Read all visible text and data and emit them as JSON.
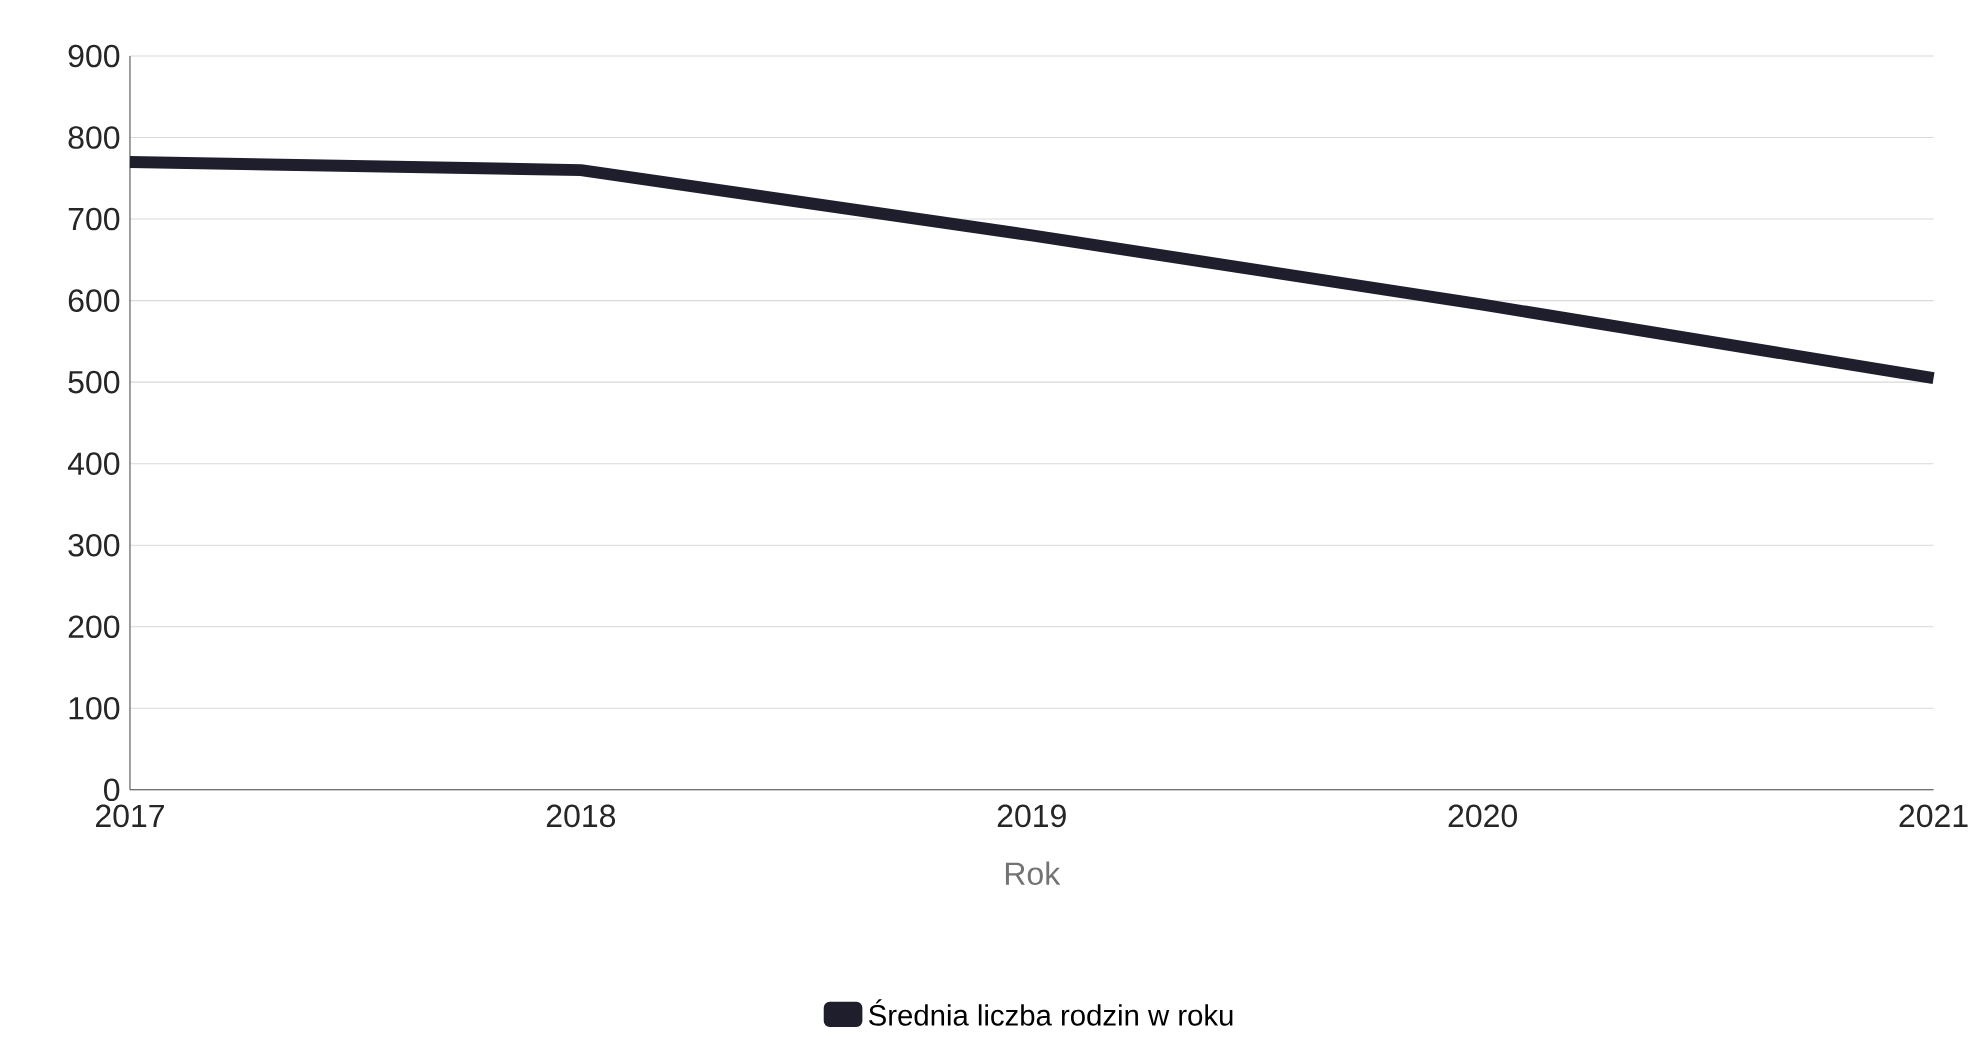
{
  "chart_data": {
    "type": "line",
    "xlabel": "Rok",
    "x": [
      2017,
      2018,
      2019,
      2020,
      2021
    ],
    "series": [
      {
        "name": "Średnia liczba rodzin w roku",
        "color": "#1e1e2c",
        "values": [
          770,
          760,
          680,
          595,
          505
        ]
      }
    ],
    "xlim": [
      2017,
      2021
    ],
    "xticks": [
      2017,
      2018,
      2019,
      2020,
      2021
    ],
    "ylim": [
      0,
      900
    ],
    "yticks": [
      0,
      100,
      200,
      300,
      400,
      500,
      600,
      700,
      800,
      900
    ],
    "grid": "y",
    "legend": "bottom",
    "marker": "none",
    "line_style": "solid"
  }
}
